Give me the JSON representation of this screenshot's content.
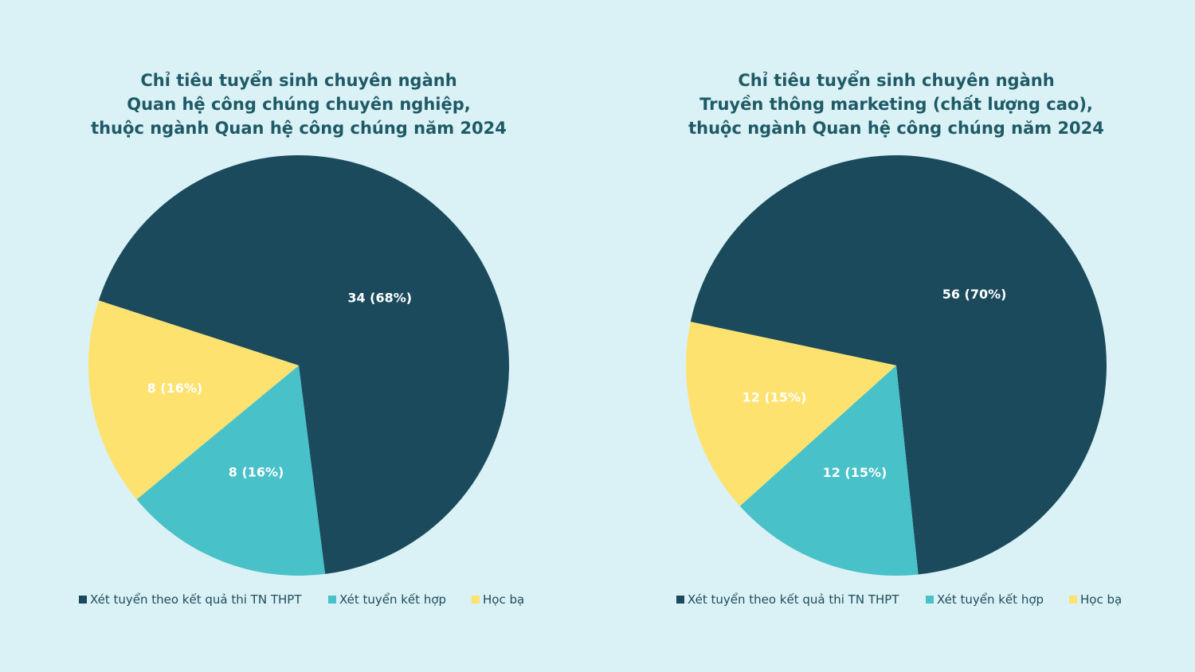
{
  "colors": {
    "background": "#daf1f5",
    "title": "#1e5a66",
    "series": [
      "#1a4a5c",
      "#48c1c8",
      "#fde26f"
    ]
  },
  "legend_labels": [
    "Xét tuyển theo kết quả thi TN THPT",
    "Xét tuyển kết hợp",
    "Học bạ"
  ],
  "chart_data": [
    {
      "type": "pie",
      "title_lines": [
        "Chỉ tiêu tuyển sinh chuyên ngành",
        "Quan hệ công chúng chuyên nghiệp,",
        "thuộc ngành Quan hệ công chúng năm 2024"
      ],
      "categories": [
        "Xét tuyển theo kết quả thi TN THPT",
        "Xét tuyển kết hợp",
        "Học bạ"
      ],
      "values": [
        34,
        8,
        8
      ],
      "labels": [
        "34 (68%)",
        "8 (16%)",
        "8 (16%)"
      ],
      "legend_position": "bottom"
    },
    {
      "type": "pie",
      "title_lines": [
        "Chỉ tiêu tuyển sinh chuyên ngành",
        "Truyền thông marketing (chất lượng cao),",
        "thuộc ngành Quan hệ công chúng năm 2024"
      ],
      "categories": [
        "Xét tuyển theo kết quả thi TN THPT",
        "Xét tuyển kết hợp",
        "Học bạ"
      ],
      "values": [
        56,
        12,
        12
      ],
      "labels": [
        "56 (70%)",
        "12 (15%)",
        "12 (15%)"
      ],
      "legend_position": "bottom"
    }
  ]
}
